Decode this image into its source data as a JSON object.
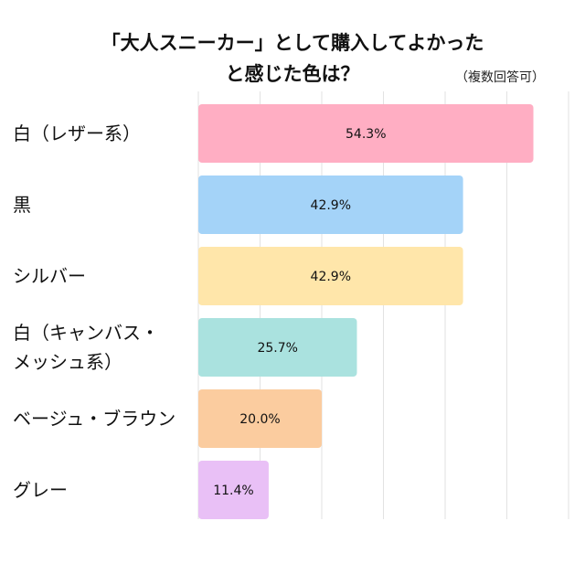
{
  "chart_data": {
    "type": "barh",
    "title": "「大人スニーカー」として購入してよかった\nと感じた色は？",
    "subtitle": "（複数回答可）",
    "categories": [
      "白（レザー系）",
      "黒",
      "シルバー",
      "白（キャンバス・\nメッシュ系）",
      "ベージュ・ブラウン",
      "グレー"
    ],
    "values": [
      54.3,
      42.9,
      42.9,
      25.7,
      20.0,
      11.4
    ],
    "value_labels": [
      "54.3%",
      "42.9%",
      "42.9%",
      "25.7%",
      "20.0%",
      "11.4%"
    ],
    "colors": [
      "#ffaec3",
      "#a4d3f8",
      "#ffe6aa",
      "#aae2df",
      "#fbcc9f",
      "#e9c0f6"
    ],
    "xlim": [
      0,
      60
    ],
    "xticks": [
      0,
      10,
      20,
      30,
      40,
      50,
      60
    ],
    "grid": true
  }
}
